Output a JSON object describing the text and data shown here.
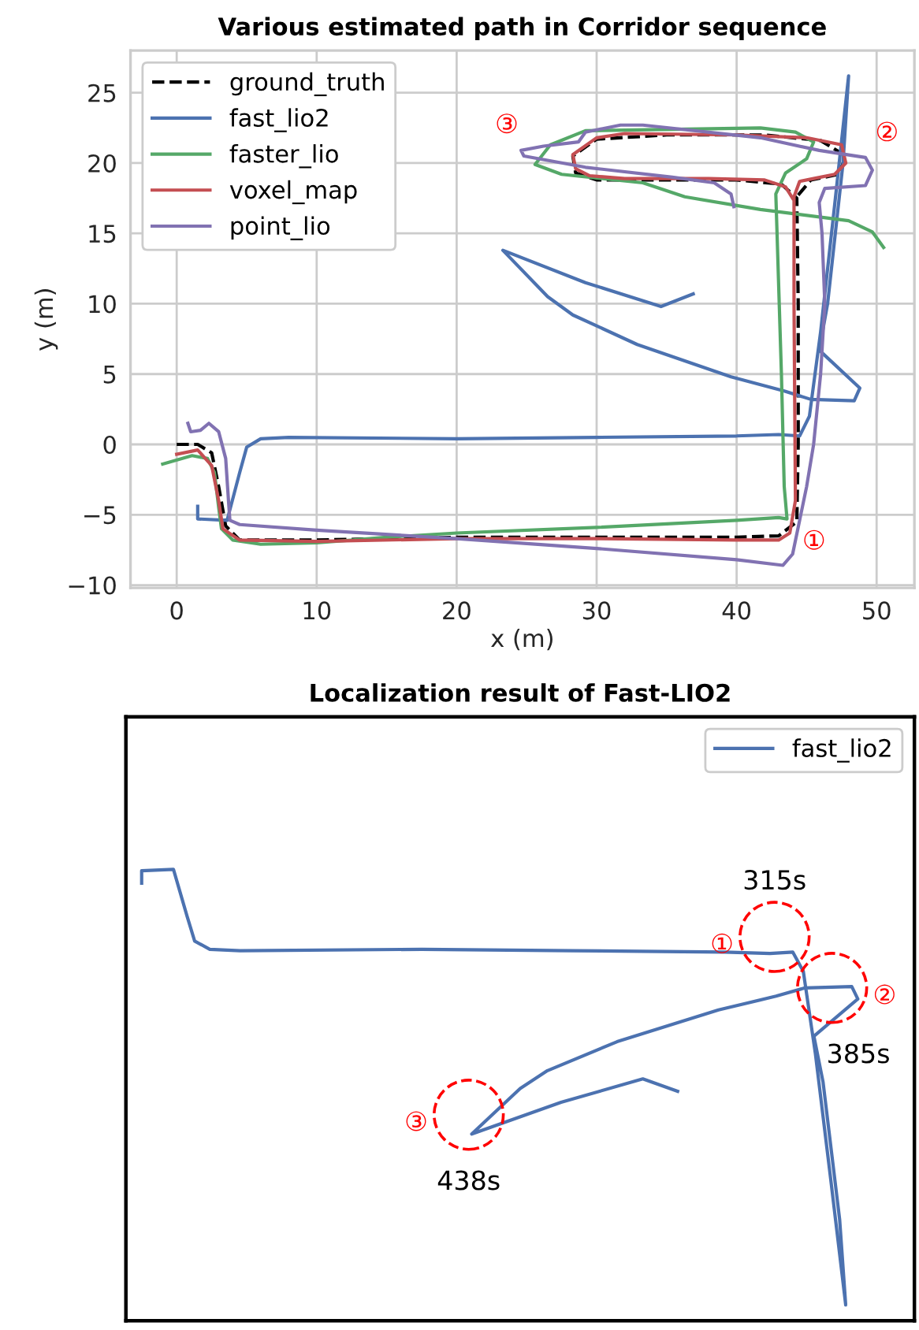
{
  "chart_data": [
    {
      "type": "line",
      "title": "Various estimated path in Corridor sequence",
      "xlabel": "x (m)",
      "ylabel": "y (m)",
      "xlim": [
        -3.3,
        52.7
      ],
      "ylim": [
        -10.2,
        28.0
      ],
      "xticks": [
        0,
        10,
        20,
        30,
        40,
        50
      ],
      "yticks": [
        {
          "value": -10,
          "label": "−10"
        },
        {
          "value": -5,
          "label": "−5"
        },
        0,
        5,
        10,
        15,
        20,
        25
      ],
      "grid": true,
      "legend": "top left",
      "annotations": [
        "①",
        "②",
        "③"
      ],
      "series": [
        {
          "name": "ground_truth",
          "color": "#000000",
          "line_style": "dashed",
          "x": [
            0,
            1.5,
            2.5,
            3,
            3.5,
            4.5,
            10,
            20,
            30,
            40,
            43,
            44.3,
            44.4,
            44.4,
            44.3,
            43.2,
            40,
            30,
            28.5,
            28.3,
            30,
            35,
            42,
            46,
            47.8,
            47.3,
            45.3,
            44.3
          ],
          "values": [
            0,
            0,
            -0.6,
            -3,
            -5.8,
            -6.8,
            -6.8,
            -6.6,
            -6.6,
            -6.6,
            -6.5,
            -5.5,
            0,
            10,
            17.5,
            18.5,
            18.8,
            18.8,
            19.3,
            20.5,
            21.7,
            22,
            22,
            21.6,
            20.5,
            19.2,
            18.8,
            17.6
          ]
        },
        {
          "name": "fast_lio2",
          "color": "#4c72b0",
          "x": [
            1.5,
            1.5,
            3.6,
            4.5,
            5,
            6,
            8,
            20,
            30,
            40,
            43,
            44.5,
            45.2,
            46,
            47,
            48,
            47.6,
            46.5,
            45.9,
            48.8,
            48.4,
            45.3,
            43.4,
            39.6,
            32.9,
            28.3,
            26.5,
            23.3,
            29.2,
            34.6,
            36.9
          ],
          "values": [
            -4.4,
            -5.3,
            -5.4,
            -2,
            -0.2,
            0.4,
            0.5,
            0.4,
            0.5,
            0.6,
            0.7,
            0.6,
            2,
            8,
            17,
            26.2,
            20,
            10,
            6.7,
            4,
            3.1,
            3.2,
            3.8,
            4.8,
            7.1,
            9.2,
            10.5,
            13.8,
            11.5,
            9.8,
            10.7
          ]
        },
        {
          "name": "faster_lio",
          "color": "#55a868",
          "x": [
            -1,
            1.1,
            2.2,
            2.7,
            3,
            3.2,
            4,
            6,
            10,
            15,
            20,
            30,
            40,
            43,
            43.6,
            43.4,
            43.2,
            42.8,
            43.5,
            45,
            45.5,
            44.2,
            41.7,
            29.2,
            26.7,
            25.6,
            27.5,
            33.3,
            36.3,
            41.7,
            48,
            49.7,
            50.5
          ],
          "values": [
            -1.4,
            -0.8,
            -1,
            -2,
            -4.5,
            -6,
            -6.8,
            -7.1,
            -7,
            -6.6,
            -6.3,
            -5.9,
            -5.4,
            -5.2,
            -5.3,
            -3,
            5,
            17.8,
            19.3,
            20.3,
            21.5,
            22.2,
            22.5,
            22.3,
            21.3,
            19.9,
            19.2,
            18.6,
            17.6,
            16.7,
            15.9,
            15.1,
            14
          ]
        },
        {
          "name": "voxel_map",
          "color": "#c44e52",
          "x": [
            0,
            1.5,
            2.5,
            3,
            3.3,
            4.5,
            10,
            20,
            30,
            40,
            43,
            43.8,
            44.2,
            44.1,
            44.1,
            44.5,
            45.5,
            47,
            47.8,
            47.5,
            45,
            40,
            32,
            30,
            28.3,
            28.5,
            29.5,
            32,
            38,
            42,
            43.5,
            44
          ],
          "values": [
            -0.7,
            -0.4,
            -1.5,
            -4,
            -6,
            -6.8,
            -6.9,
            -6.7,
            -6.7,
            -6.8,
            -6.8,
            -6.3,
            -4,
            10,
            17.6,
            18.7,
            18.9,
            19.2,
            20,
            21.3,
            21.8,
            22,
            22.1,
            21.8,
            20.6,
            19.6,
            19.1,
            18.9,
            18.9,
            18.8,
            18.3,
            17.5
          ]
        },
        {
          "name": "point_lio",
          "color": "#8172b2",
          "x": [
            0.8,
            1,
            1.7,
            2.3,
            3,
            3.5,
            3.7,
            3.8,
            4.5,
            10,
            20,
            30,
            40,
            43.3,
            44,
            45,
            45.5,
            46,
            46.3,
            46.1,
            45.9,
            46.3,
            49.2,
            49.7,
            49.2,
            45.9,
            41.7,
            33.3,
            31.7,
            29.2,
            28.7,
            26.2,
            24.6,
            24.8,
            29.2,
            35.4,
            38.4,
            39.6,
            39.8
          ],
          "values": [
            1.5,
            0.9,
            1,
            1.5,
            0.9,
            -1,
            -4,
            -5.4,
            -5.7,
            -6.1,
            -6.7,
            -7.4,
            -8.2,
            -8.6,
            -7.8,
            -3,
            0,
            5,
            10,
            15,
            17.2,
            18.2,
            18.4,
            19.5,
            20.4,
            20.9,
            21.8,
            22.7,
            22.7,
            22.2,
            21.5,
            21.2,
            20.9,
            20.5,
            19.7,
            19,
            18.6,
            17.8,
            16.9
          ]
        }
      ]
    },
    {
      "type": "other",
      "title": "Localization result of Fast-LIO2",
      "annotations": [
        "①",
        "315s",
        "②",
        "385s",
        "③",
        "438s"
      ]
    }
  ]
}
